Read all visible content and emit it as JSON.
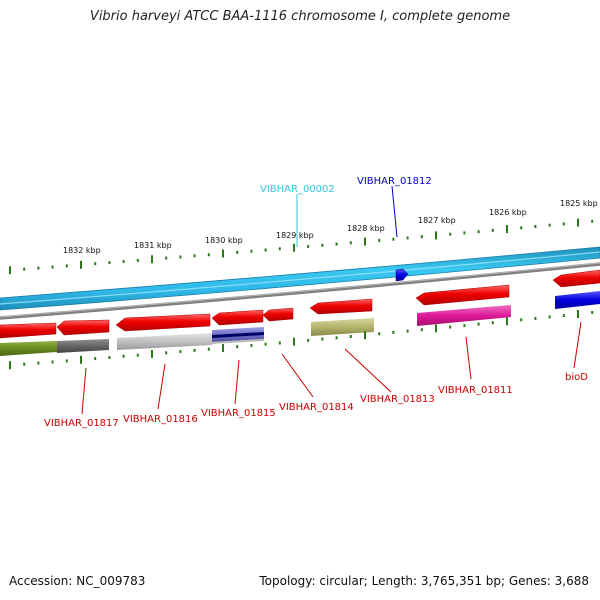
{
  "title": "Vibrio harveyi ATCC BAA-1116 chromosome I, complete genome",
  "footer": {
    "accession": "Accession: NC_009783",
    "summary": "Topology: circular; Length: 3,765,351 bp; Genes: 3,688"
  },
  "kbp_labels": [
    "1832 kbp",
    "1831 kbp",
    "1830 kbp",
    "1829 kbp",
    "1828 kbp",
    "1827 kbp",
    "1826 kbp",
    "1825 kbp"
  ],
  "upper_labels": [
    {
      "text": "VIBHAR_00002",
      "color": "#33c4e6"
    },
    {
      "text": "VIBHAR_01812",
      "color": "#0000cc"
    }
  ],
  "lower_labels": [
    {
      "text": "VIBHAR_01817",
      "color": "#cc0000"
    },
    {
      "text": "VIBHAR_01816",
      "color": "#cc0000"
    },
    {
      "text": "VIBHAR_01815",
      "color": "#cc0000"
    },
    {
      "text": "VIBHAR_01814",
      "color": "#cc0000"
    },
    {
      "text": "VIBHAR_01813",
      "color": "#cc0000"
    },
    {
      "text": "VIBHAR_01811",
      "color": "#cc0000"
    },
    {
      "text": "bioD",
      "color": "#cc0000"
    }
  ],
  "colors": {
    "backbone": "#2fb8e8",
    "backbone_dark": "#1e8fb8",
    "gray_strand": "#808080",
    "tick": "#2a7a1a",
    "cds_red": "#ee0000",
    "cds_blue": "#0000dd",
    "cds_magenta": "#dd1a99",
    "olive": "#b4b46e",
    "dark_olive": "#6b8a1e",
    "dark_gray": "#666666",
    "light_gray": "#c0c0c0",
    "slate_blue": "#7070c8"
  }
}
